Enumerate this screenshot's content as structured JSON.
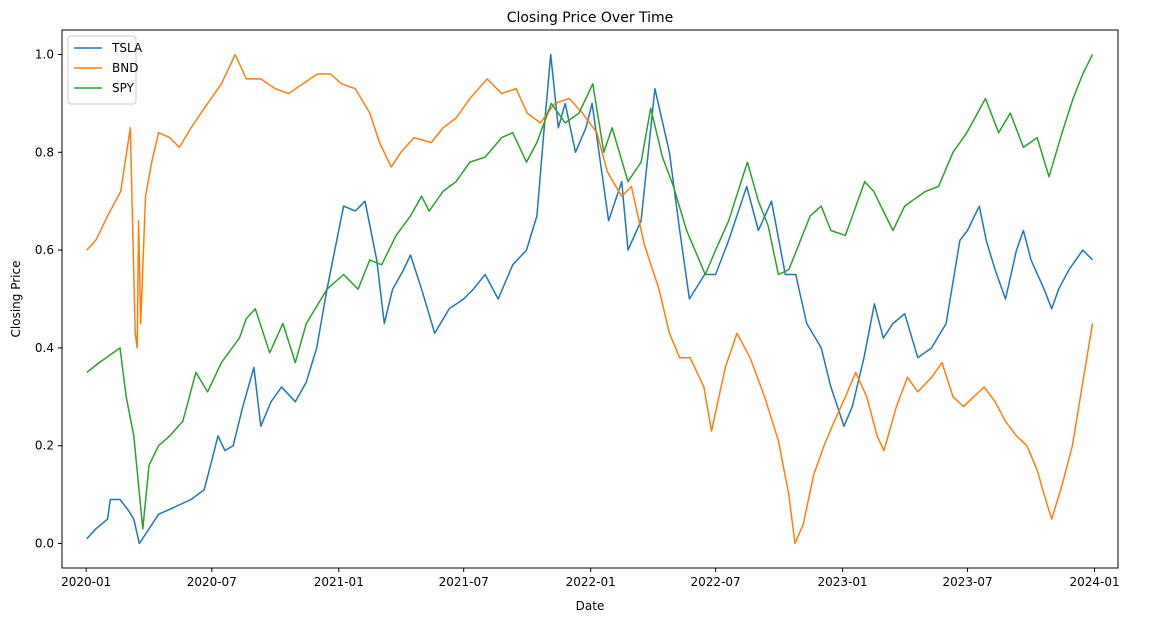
{
  "chart_data": {
    "type": "line",
    "title": "Closing Price Over Time",
    "xlabel": "Date",
    "ylabel": "Closing Price",
    "xlim": [
      "2019-11-27",
      "2024-02-04"
    ],
    "ylim": [
      -0.05,
      1.05
    ],
    "x_ticks": [
      "2020-01",
      "2020-07",
      "2021-01",
      "2021-07",
      "2022-01",
      "2022-07",
      "2023-01",
      "2023-07",
      "2024-01"
    ],
    "y_ticks": [
      "0.0",
      "0.2",
      "0.4",
      "0.6",
      "0.8",
      "1.0"
    ],
    "legend": {
      "placement": "upper-left"
    },
    "grid": false,
    "series": [
      {
        "name": "TSLA",
        "color": "#1f77b4",
        "points": [
          [
            "2020-01-02",
            0.01
          ],
          [
            "2020-01-15",
            0.03
          ],
          [
            "2020-02-01",
            0.05
          ],
          [
            "2020-02-05",
            0.09
          ],
          [
            "2020-02-19",
            0.09
          ],
          [
            "2020-03-01",
            0.07
          ],
          [
            "2020-03-10",
            0.05
          ],
          [
            "2020-03-18",
            0.0
          ],
          [
            "2020-04-01",
            0.03
          ],
          [
            "2020-04-15",
            0.06
          ],
          [
            "2020-05-01",
            0.07
          ],
          [
            "2020-06-01",
            0.09
          ],
          [
            "2020-06-20",
            0.11
          ],
          [
            "2020-07-01",
            0.17
          ],
          [
            "2020-07-10",
            0.22
          ],
          [
            "2020-07-20",
            0.19
          ],
          [
            "2020-08-01",
            0.2
          ],
          [
            "2020-08-15",
            0.28
          ],
          [
            "2020-08-31",
            0.36
          ],
          [
            "2020-09-10",
            0.24
          ],
          [
            "2020-09-25",
            0.29
          ],
          [
            "2020-10-10",
            0.32
          ],
          [
            "2020-10-30",
            0.29
          ],
          [
            "2020-11-15",
            0.33
          ],
          [
            "2020-11-30",
            0.4
          ],
          [
            "2020-12-15",
            0.52
          ],
          [
            "2021-01-08",
            0.69
          ],
          [
            "2021-01-25",
            0.68
          ],
          [
            "2021-02-08",
            0.7
          ],
          [
            "2021-02-25",
            0.58
          ],
          [
            "2021-03-08",
            0.45
          ],
          [
            "2021-03-20",
            0.52
          ],
          [
            "2021-04-05",
            0.56
          ],
          [
            "2021-04-15",
            0.59
          ],
          [
            "2021-05-01",
            0.52
          ],
          [
            "2021-05-20",
            0.43
          ],
          [
            "2021-06-10",
            0.48
          ],
          [
            "2021-07-01",
            0.5
          ],
          [
            "2021-07-15",
            0.52
          ],
          [
            "2021-08-01",
            0.55
          ],
          [
            "2021-08-20",
            0.5
          ],
          [
            "2021-09-10",
            0.57
          ],
          [
            "2021-09-30",
            0.6
          ],
          [
            "2021-10-15",
            0.67
          ],
          [
            "2021-10-25",
            0.84
          ],
          [
            "2021-11-04",
            1.0
          ],
          [
            "2021-11-15",
            0.85
          ],
          [
            "2021-11-25",
            0.9
          ],
          [
            "2021-12-10",
            0.8
          ],
          [
            "2021-12-25",
            0.85
          ],
          [
            "2022-01-03",
            0.9
          ],
          [
            "2022-01-27",
            0.66
          ],
          [
            "2022-02-15",
            0.74
          ],
          [
            "2022-02-24",
            0.6
          ],
          [
            "2022-03-15",
            0.66
          ],
          [
            "2022-04-04",
            0.93
          ],
          [
            "2022-04-25",
            0.8
          ],
          [
            "2022-05-10",
            0.64
          ],
          [
            "2022-05-24",
            0.5
          ],
          [
            "2022-06-15",
            0.55
          ],
          [
            "2022-07-01",
            0.55
          ],
          [
            "2022-07-20",
            0.62
          ],
          [
            "2022-08-15",
            0.73
          ],
          [
            "2022-09-01",
            0.64
          ],
          [
            "2022-09-20",
            0.7
          ],
          [
            "2022-10-10",
            0.55
          ],
          [
            "2022-10-25",
            0.55
          ],
          [
            "2022-11-10",
            0.45
          ],
          [
            "2022-12-01",
            0.4
          ],
          [
            "2022-12-15",
            0.32
          ],
          [
            "2023-01-03",
            0.24
          ],
          [
            "2023-01-15",
            0.28
          ],
          [
            "2023-02-01",
            0.38
          ],
          [
            "2023-02-16",
            0.49
          ],
          [
            "2023-03-01",
            0.42
          ],
          [
            "2023-03-15",
            0.45
          ],
          [
            "2023-04-01",
            0.47
          ],
          [
            "2023-04-20",
            0.38
          ],
          [
            "2023-05-10",
            0.4
          ],
          [
            "2023-05-31",
            0.45
          ],
          [
            "2023-06-20",
            0.62
          ],
          [
            "2023-07-01",
            0.64
          ],
          [
            "2023-07-18",
            0.69
          ],
          [
            "2023-07-28",
            0.62
          ],
          [
            "2023-08-10",
            0.56
          ],
          [
            "2023-08-25",
            0.5
          ],
          [
            "2023-09-10",
            0.6
          ],
          [
            "2023-09-20",
            0.64
          ],
          [
            "2023-10-01",
            0.58
          ],
          [
            "2023-10-20",
            0.52
          ],
          [
            "2023-10-31",
            0.48
          ],
          [
            "2023-11-10",
            0.52
          ],
          [
            "2023-11-25",
            0.56
          ],
          [
            "2023-12-15",
            0.6
          ],
          [
            "2023-12-29",
            0.58
          ]
        ]
      },
      {
        "name": "BND",
        "color": "#ff7f0e",
        "points": [
          [
            "2020-01-02",
            0.6
          ],
          [
            "2020-01-15",
            0.62
          ],
          [
            "2020-02-01",
            0.67
          ],
          [
            "2020-02-20",
            0.72
          ],
          [
            "2020-03-05",
            0.85
          ],
          [
            "2020-03-12",
            0.43
          ],
          [
            "2020-03-15",
            0.4
          ],
          [
            "2020-03-17",
            0.66
          ],
          [
            "2020-03-20",
            0.45
          ],
          [
            "2020-03-27",
            0.71
          ],
          [
            "2020-04-05",
            0.78
          ],
          [
            "2020-04-15",
            0.84
          ],
          [
            "2020-05-01",
            0.83
          ],
          [
            "2020-05-15",
            0.81
          ],
          [
            "2020-06-01",
            0.85
          ],
          [
            "2020-06-20",
            0.89
          ],
          [
            "2020-07-15",
            0.94
          ],
          [
            "2020-08-04",
            1.0
          ],
          [
            "2020-08-20",
            0.95
          ],
          [
            "2020-09-10",
            0.95
          ],
          [
            "2020-10-01",
            0.93
          ],
          [
            "2020-10-20",
            0.92
          ],
          [
            "2020-11-10",
            0.94
          ],
          [
            "2020-12-01",
            0.96
          ],
          [
            "2020-12-20",
            0.96
          ],
          [
            "2021-01-05",
            0.94
          ],
          [
            "2021-01-25",
            0.93
          ],
          [
            "2021-02-15",
            0.88
          ],
          [
            "2021-03-01",
            0.82
          ],
          [
            "2021-03-18",
            0.77
          ],
          [
            "2021-04-01",
            0.8
          ],
          [
            "2021-04-20",
            0.83
          ],
          [
            "2021-05-15",
            0.82
          ],
          [
            "2021-06-01",
            0.85
          ],
          [
            "2021-06-20",
            0.87
          ],
          [
            "2021-07-10",
            0.91
          ],
          [
            "2021-08-04",
            0.95
          ],
          [
            "2021-08-25",
            0.92
          ],
          [
            "2021-09-15",
            0.93
          ],
          [
            "2021-10-01",
            0.88
          ],
          [
            "2021-10-20",
            0.86
          ],
          [
            "2021-11-10",
            0.9
          ],
          [
            "2021-12-01",
            0.91
          ],
          [
            "2021-12-20",
            0.88
          ],
          [
            "2022-01-10",
            0.84
          ],
          [
            "2022-01-25",
            0.76
          ],
          [
            "2022-02-15",
            0.71
          ],
          [
            "2022-03-01",
            0.73
          ],
          [
            "2022-03-20",
            0.61
          ],
          [
            "2022-04-10",
            0.52
          ],
          [
            "2022-04-25",
            0.43
          ],
          [
            "2022-05-10",
            0.38
          ],
          [
            "2022-05-25",
            0.38
          ],
          [
            "2022-06-14",
            0.32
          ],
          [
            "2022-06-25",
            0.23
          ],
          [
            "2022-07-15",
            0.36
          ],
          [
            "2022-08-01",
            0.43
          ],
          [
            "2022-08-20",
            0.38
          ],
          [
            "2022-09-10",
            0.3
          ],
          [
            "2022-09-30",
            0.21
          ],
          [
            "2022-10-15",
            0.1
          ],
          [
            "2022-10-24",
            0.0
          ],
          [
            "2022-11-05",
            0.04
          ],
          [
            "2022-11-20",
            0.14
          ],
          [
            "2022-12-05",
            0.2
          ],
          [
            "2022-12-20",
            0.25
          ],
          [
            "2023-01-05",
            0.3
          ],
          [
            "2023-01-20",
            0.35
          ],
          [
            "2023-02-05",
            0.3
          ],
          [
            "2023-02-20",
            0.22
          ],
          [
            "2023-03-02",
            0.19
          ],
          [
            "2023-03-20",
            0.28
          ],
          [
            "2023-04-05",
            0.34
          ],
          [
            "2023-04-20",
            0.31
          ],
          [
            "2023-05-10",
            0.34
          ],
          [
            "2023-05-25",
            0.37
          ],
          [
            "2023-06-10",
            0.3
          ],
          [
            "2023-06-25",
            0.28
          ],
          [
            "2023-07-10",
            0.3
          ],
          [
            "2023-07-25",
            0.32
          ],
          [
            "2023-08-10",
            0.29
          ],
          [
            "2023-08-25",
            0.25
          ],
          [
            "2023-09-10",
            0.22
          ],
          [
            "2023-09-25",
            0.2
          ],
          [
            "2023-10-10",
            0.15
          ],
          [
            "2023-10-20",
            0.1
          ],
          [
            "2023-10-31",
            0.05
          ],
          [
            "2023-11-15",
            0.12
          ],
          [
            "2023-11-30",
            0.2
          ],
          [
            "2023-12-15",
            0.33
          ],
          [
            "2023-12-29",
            0.45
          ]
        ]
      },
      {
        "name": "SPY",
        "color": "#2ca02c",
        "points": [
          [
            "2020-01-02",
            0.35
          ],
          [
            "2020-01-20",
            0.37
          ],
          [
            "2020-02-19",
            0.4
          ],
          [
            "2020-02-28",
            0.3
          ],
          [
            "2020-03-10",
            0.22
          ],
          [
            "2020-03-23",
            0.03
          ],
          [
            "2020-04-01",
            0.16
          ],
          [
            "2020-04-15",
            0.2
          ],
          [
            "2020-05-01",
            0.22
          ],
          [
            "2020-05-20",
            0.25
          ],
          [
            "2020-06-08",
            0.35
          ],
          [
            "2020-06-25",
            0.31
          ],
          [
            "2020-07-15",
            0.37
          ],
          [
            "2020-08-10",
            0.42
          ],
          [
            "2020-08-20",
            0.46
          ],
          [
            "2020-09-02",
            0.48
          ],
          [
            "2020-09-23",
            0.39
          ],
          [
            "2020-10-12",
            0.45
          ],
          [
            "2020-10-30",
            0.37
          ],
          [
            "2020-11-15",
            0.45
          ],
          [
            "2020-12-15",
            0.52
          ],
          [
            "2021-01-08",
            0.55
          ],
          [
            "2021-01-29",
            0.52
          ],
          [
            "2021-02-15",
            0.58
          ],
          [
            "2021-03-04",
            0.57
          ],
          [
            "2021-03-25",
            0.63
          ],
          [
            "2021-04-15",
            0.67
          ],
          [
            "2021-05-01",
            0.71
          ],
          [
            "2021-05-12",
            0.68
          ],
          [
            "2021-06-01",
            0.72
          ],
          [
            "2021-06-20",
            0.74
          ],
          [
            "2021-07-10",
            0.78
          ],
          [
            "2021-08-01",
            0.79
          ],
          [
            "2021-08-25",
            0.83
          ],
          [
            "2021-09-10",
            0.84
          ],
          [
            "2021-09-30",
            0.78
          ],
          [
            "2021-10-15",
            0.82
          ],
          [
            "2021-11-05",
            0.9
          ],
          [
            "2021-11-25",
            0.86
          ],
          [
            "2021-12-15",
            0.88
          ],
          [
            "2022-01-04",
            0.94
          ],
          [
            "2022-01-20",
            0.8
          ],
          [
            "2022-02-01",
            0.85
          ],
          [
            "2022-02-24",
            0.74
          ],
          [
            "2022-03-15",
            0.78
          ],
          [
            "2022-03-29",
            0.89
          ],
          [
            "2022-04-15",
            0.79
          ],
          [
            "2022-05-01",
            0.73
          ],
          [
            "2022-05-20",
            0.64
          ],
          [
            "2022-06-16",
            0.55
          ],
          [
            "2022-07-01",
            0.6
          ],
          [
            "2022-07-20",
            0.66
          ],
          [
            "2022-08-16",
            0.78
          ],
          [
            "2022-09-01",
            0.7
          ],
          [
            "2022-09-15",
            0.65
          ],
          [
            "2022-09-30",
            0.55
          ],
          [
            "2022-10-15",
            0.56
          ],
          [
            "2022-11-01",
            0.62
          ],
          [
            "2022-11-15",
            0.67
          ],
          [
            "2022-12-01",
            0.69
          ],
          [
            "2022-12-15",
            0.64
          ],
          [
            "2023-01-05",
            0.63
          ],
          [
            "2023-02-02",
            0.74
          ],
          [
            "2023-02-15",
            0.72
          ],
          [
            "2023-03-01",
            0.68
          ],
          [
            "2023-03-15",
            0.64
          ],
          [
            "2023-04-01",
            0.69
          ],
          [
            "2023-05-01",
            0.72
          ],
          [
            "2023-05-20",
            0.73
          ],
          [
            "2023-06-10",
            0.8
          ],
          [
            "2023-06-30",
            0.84
          ],
          [
            "2023-07-27",
            0.91
          ],
          [
            "2023-08-15",
            0.84
          ],
          [
            "2023-09-01",
            0.88
          ],
          [
            "2023-09-20",
            0.81
          ],
          [
            "2023-10-10",
            0.83
          ],
          [
            "2023-10-27",
            0.75
          ],
          [
            "2023-11-15",
            0.84
          ],
          [
            "2023-12-01",
            0.91
          ],
          [
            "2023-12-15",
            0.96
          ],
          [
            "2023-12-29",
            1.0
          ]
        ]
      }
    ]
  }
}
